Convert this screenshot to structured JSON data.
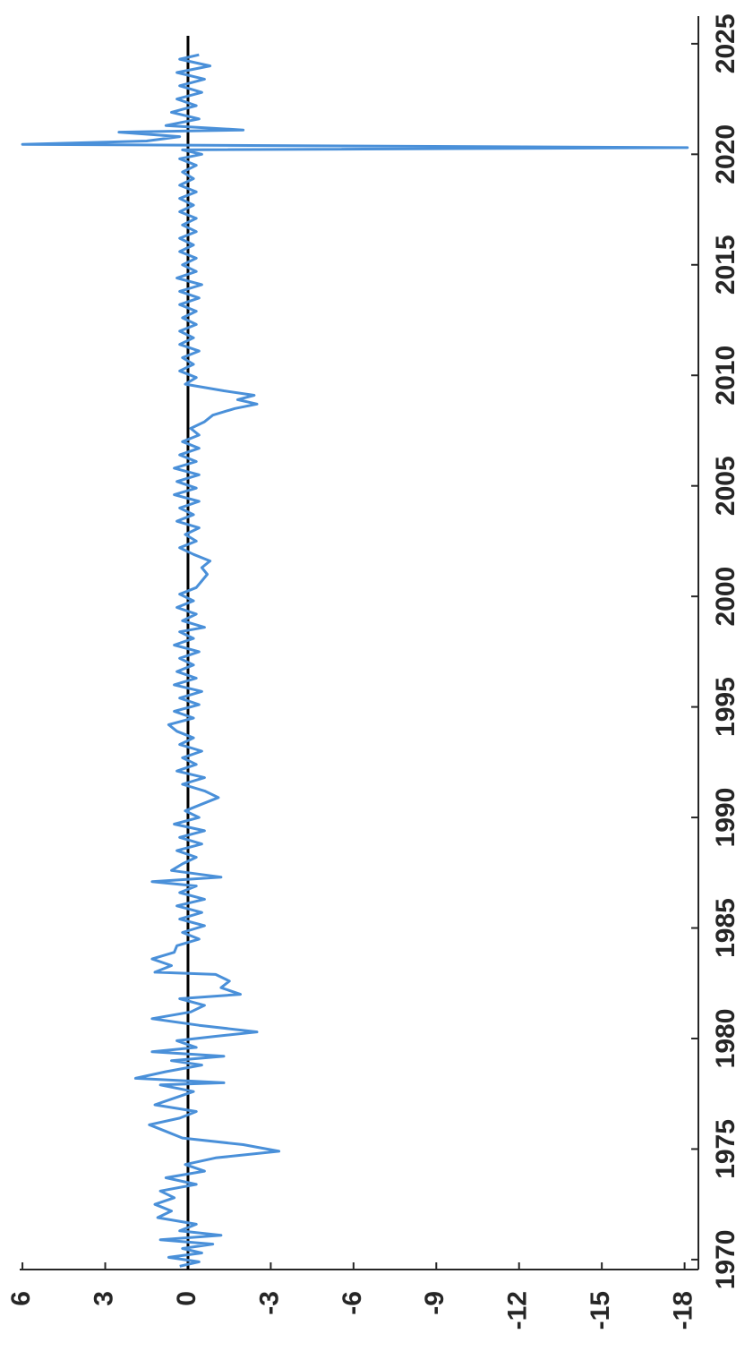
{
  "chart_data": {
    "type": "line",
    "rotated": true,
    "zero_line": true,
    "xlim": [
      1969.55,
      2026.25
    ],
    "xticks": [
      1970,
      1975,
      1980,
      1985,
      1990,
      1995,
      2000,
      2005,
      2010,
      2015,
      2020,
      2025
    ],
    "ylim": [
      -18.5,
      6.1
    ],
    "yticks": [
      6,
      3,
      0,
      -3,
      -6,
      -9,
      -12,
      -15,
      -18
    ],
    "series": [
      {
        "color": "#4a90d9",
        "x": [
          1969.7,
          1969.9,
          1970.1,
          1970.3,
          1970.5,
          1970.7,
          1970.9,
          1971.1,
          1971.3,
          1971.6,
          1971.9,
          1972.2,
          1972.5,
          1972.8,
          1973.1,
          1973.4,
          1973.7,
          1974.0,
          1974.3,
          1974.6,
          1974.9,
          1975.2,
          1975.5,
          1975.8,
          1976.1,
          1976.4,
          1976.7,
          1977.0,
          1977.3,
          1977.6,
          1977.9,
          1978.0,
          1978.2,
          1978.5,
          1978.8,
          1979.0,
          1979.2,
          1979.4,
          1979.6,
          1979.9,
          1980.1,
          1980.3,
          1980.6,
          1980.9,
          1981.2,
          1981.5,
          1981.8,
          1982.0,
          1982.3,
          1982.6,
          1982.9,
          1983.0,
          1983.3,
          1983.6,
          1983.9,
          1984.2,
          1984.5,
          1984.8,
          1985.1,
          1985.4,
          1985.7,
          1986.0,
          1986.3,
          1986.6,
          1986.9,
          1987.1,
          1987.3,
          1987.6,
          1987.9,
          1988.2,
          1988.5,
          1988.8,
          1989.1,
          1989.4,
          1989.7,
          1990.0,
          1990.3,
          1990.6,
          1990.9,
          1991.2,
          1991.5,
          1991.8,
          1992.1,
          1992.4,
          1992.7,
          1993.0,
          1993.3,
          1993.6,
          1993.9,
          1994.2,
          1994.5,
          1994.8,
          1995.1,
          1995.4,
          1995.7,
          1996.0,
          1996.3,
          1996.6,
          1996.9,
          1997.2,
          1997.5,
          1997.8,
          1998.1,
          1998.4,
          1998.6,
          1998.9,
          1999.2,
          1999.5,
          1999.8,
          2000.1,
          2000.4,
          2000.7,
          2001.0,
          2001.3,
          2001.6,
          2001.9,
          2002.2,
          2002.5,
          2002.8,
          2003.1,
          2003.4,
          2003.7,
          2004.0,
          2004.3,
          2004.6,
          2004.9,
          2005.2,
          2005.5,
          2005.8,
          2006.1,
          2006.4,
          2006.7,
          2007.0,
          2007.3,
          2007.6,
          2007.9,
          2008.2,
          2008.5,
          2008.7,
          2008.9,
          2009.1,
          2009.3,
          2009.6,
          2009.9,
          2010.2,
          2010.5,
          2010.8,
          2011.1,
          2011.4,
          2011.7,
          2012.0,
          2012.3,
          2012.6,
          2012.9,
          2013.2,
          2013.5,
          2013.8,
          2014.1,
          2014.4,
          2014.7,
          2015.0,
          2015.3,
          2015.6,
          2015.9,
          2016.2,
          2016.5,
          2016.8,
          2017.1,
          2017.4,
          2017.7,
          2018.0,
          2018.3,
          2018.6,
          2018.9,
          2019.2,
          2019.5,
          2019.8,
          2020.0,
          2020.2,
          2020.3,
          2020.45,
          2020.6,
          2020.8,
          2021.0,
          2021.1,
          2021.3,
          2021.6,
          2021.9,
          2022.2,
          2022.5,
          2022.8,
          2023.1,
          2023.4,
          2023.7,
          2024.0,
          2024.3,
          2024.5
        ],
        "values": [
          0.3,
          -0.4,
          0.7,
          -0.5,
          0.2,
          -0.9,
          1.0,
          -1.2,
          0.3,
          -0.3,
          1.1,
          0.6,
          1.2,
          0.5,
          1.0,
          -0.3,
          0.8,
          -0.6,
          0.1,
          -1.0,
          -3.3,
          -2.0,
          0.2,
          0.8,
          1.4,
          0.3,
          -0.3,
          1.2,
          0.5,
          -0.2,
          1.0,
          -1.3,
          1.9,
          0.8,
          -0.5,
          0.6,
          -1.3,
          1.3,
          -0.3,
          0.4,
          -1.0,
          -2.5,
          -0.4,
          1.3,
          -0.1,
          -0.6,
          0.3,
          -1.9,
          -1.2,
          -1.5,
          -1.0,
          1.2,
          0.6,
          1.3,
          0.5,
          0.4,
          -0.4,
          0.2,
          -0.6,
          0.3,
          -0.5,
          0.4,
          -0.6,
          0.3,
          -0.3,
          1.3,
          -1.2,
          0.6,
          0.2,
          -0.3,
          0.4,
          -0.5,
          0.3,
          -0.6,
          0.5,
          -0.4,
          0.1,
          -0.5,
          -1.1,
          -0.6,
          0.2,
          -0.6,
          0.4,
          -0.3,
          0.2,
          -0.5,
          0.3,
          -0.2,
          0.4,
          0.7,
          -0.2,
          0.5,
          -0.4,
          0.3,
          -0.5,
          0.5,
          -0.3,
          0.4,
          -0.2,
          0.3,
          -0.4,
          0.5,
          -0.2,
          0.3,
          -0.6,
          0.2,
          -0.3,
          0.4,
          -0.2,
          0.3,
          -0.3,
          -0.5,
          -0.7,
          -0.5,
          -0.8,
          -0.2,
          0.3,
          -0.3,
          0.1,
          -0.4,
          0.4,
          -0.2,
          0.3,
          -0.4,
          0.5,
          -0.3,
          0.4,
          -0.4,
          0.5,
          -0.3,
          0.3,
          -0.4,
          0.2,
          -0.4,
          -0.1,
          -0.6,
          -0.9,
          -1.7,
          -2.5,
          -1.8,
          -2.4,
          -1.3,
          0.1,
          -0.3,
          0.3,
          -0.2,
          0.2,
          -0.4,
          0.3,
          -0.2,
          0.3,
          -0.3,
          0.2,
          -0.3,
          0.3,
          -0.4,
          0.3,
          -0.5,
          0.4,
          -0.3,
          0.2,
          -0.3,
          0.3,
          -0.2,
          0.3,
          -0.3,
          0.2,
          -0.3,
          0.3,
          -0.2,
          0.3,
          -0.3,
          0.3,
          -0.2,
          0.2,
          -0.3,
          0.3,
          -0.5,
          0.2,
          -18.1,
          6.0,
          1.5,
          0.3,
          2.5,
          -2.0,
          0.8,
          -0.4,
          0.6,
          -0.3,
          0.4,
          -0.5,
          0.3,
          -0.6,
          0.4,
          -0.8,
          0.3,
          -0.4
        ]
      }
    ]
  }
}
